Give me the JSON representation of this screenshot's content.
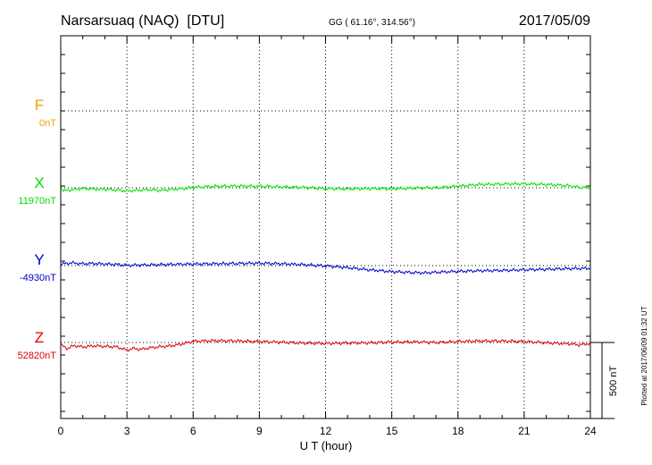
{
  "header": {
    "station": "Narsarsuaq (NAQ)  [DTU]",
    "coords": "GG ( 61.16°, 314.56°)",
    "date": "2017/05/09"
  },
  "footer": {
    "plotted": "Plotted at 2017/06/09 01:32 UT"
  },
  "chart_data": {
    "type": "line",
    "xlabel": "U T (hour)",
    "xlim": [
      0,
      24
    ],
    "x_ticks": [
      "0",
      "3",
      "6",
      "9",
      "12",
      "15",
      "18",
      "21",
      "24"
    ],
    "scale_bar_label": "500 nT",
    "scale_bar_nT": 500,
    "colors": {
      "F": "#f5a000",
      "X": "#00dd00",
      "Y": "#0000cc",
      "Z": "#dd0000"
    },
    "series": [
      {
        "name": "F",
        "baseline_label": "0nT",
        "x": [],
        "values": []
      },
      {
        "name": "X",
        "baseline_label": "11970nT",
        "x": [
          0,
          0.2,
          0.5,
          1,
          1.5,
          2,
          2.5,
          3,
          3.5,
          4,
          4.5,
          5,
          5.5,
          6,
          7,
          8,
          9,
          10,
          11,
          12,
          13,
          14,
          15,
          16,
          17,
          18,
          19,
          20,
          21,
          22,
          23,
          23.5,
          24
        ],
        "values": [
          -10,
          -20,
          -12,
          -5,
          -8,
          -10,
          -14,
          -22,
          -16,
          -12,
          -18,
          -10,
          -6,
          2,
          10,
          12,
          10,
          6,
          2,
          -5,
          -8,
          -5,
          -6,
          -2,
          0,
          10,
          22,
          24,
          26,
          22,
          14,
          2,
          4
        ]
      },
      {
        "name": "Y",
        "baseline_label": "-4930nT",
        "x": [
          0,
          0.5,
          1,
          1.5,
          2,
          2.5,
          3,
          4,
          5,
          6,
          7,
          8,
          9,
          10,
          11,
          12,
          13,
          14,
          15,
          16,
          16.5,
          17,
          18,
          19,
          20,
          21,
          22,
          23,
          24
        ],
        "values": [
          10,
          18,
          12,
          14,
          10,
          8,
          2,
          4,
          8,
          10,
          12,
          14,
          16,
          12,
          6,
          -2,
          -14,
          -28,
          -40,
          -46,
          -48,
          -44,
          -38,
          -34,
          -32,
          -28,
          -24,
          -20,
          -18
        ]
      },
      {
        "name": "Z",
        "baseline_label": "52820nT",
        "x": [
          0,
          0.3,
          0.6,
          1,
          1.5,
          2,
          2.5,
          3,
          3.3,
          3.6,
          4,
          4.5,
          5,
          5.5,
          6,
          7,
          8,
          9,
          10,
          11,
          12,
          13,
          14,
          15,
          16,
          17,
          18,
          19,
          20,
          21,
          22,
          23,
          23.5,
          24
        ],
        "values": [
          -16,
          -40,
          -20,
          -30,
          -22,
          -26,
          -28,
          -50,
          -38,
          -46,
          -36,
          -28,
          -22,
          -10,
          8,
          12,
          10,
          6,
          2,
          -4,
          -6,
          -4,
          -2,
          2,
          4,
          0,
          6,
          10,
          10,
          6,
          -2,
          -8,
          -16,
          -6
        ]
      }
    ]
  }
}
